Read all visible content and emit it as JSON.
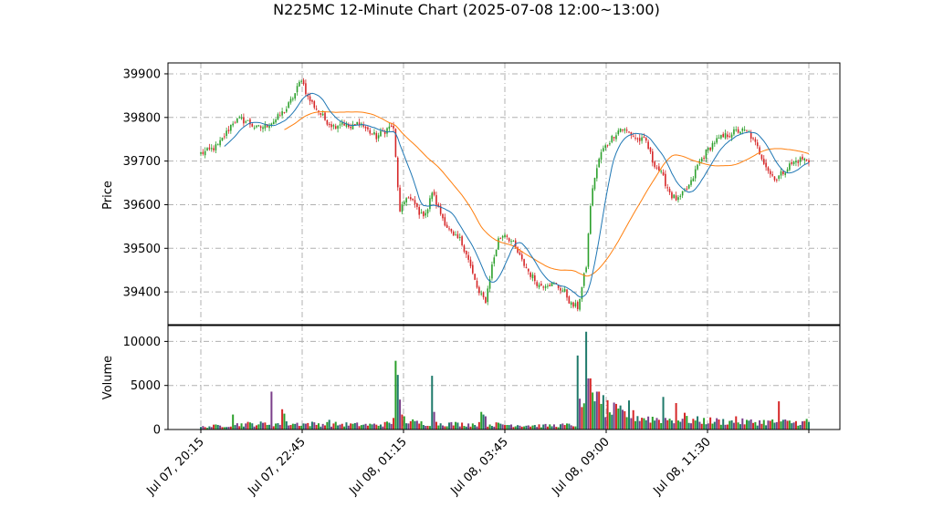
{
  "chart_data": {
    "type": "candlestick",
    "title": "N225MC 12-Minute Chart (2025-07-08 12:00~13:00)",
    "price_axis": {
      "label": "Price",
      "ylim": [
        39325,
        39925
      ],
      "ticks": [
        39400,
        39500,
        39600,
        39700,
        39800,
        39900
      ]
    },
    "volume_axis": {
      "label": "Volume",
      "ylim": [
        0,
        11800
      ],
      "ticks": [
        0,
        5000,
        10000
      ]
    },
    "x_tick_labels": [
      "Jul 07, 20:15",
      "Jul 07, 22:45",
      "Jul 08, 01:15",
      "Jul 08, 03:45",
      "Jul 08, 09:00",
      "Jul 08, 11:30"
    ],
    "grid": true,
    "colors": {
      "up": "#2ca02c",
      "down": "#d62728",
      "ma_short": "#1f77b4",
      "ma_long": "#ff7f0e",
      "volume_palette": [
        "#1f7a6b",
        "#7b3f8a",
        "#d62728",
        "#2ca02c"
      ]
    },
    "close_anchors": [
      [
        0,
        39718
      ],
      [
        3,
        39722
      ],
      [
        8,
        39735
      ],
      [
        12,
        39765
      ],
      [
        15,
        39790
      ],
      [
        18,
        39795
      ],
      [
        22,
        39790
      ],
      [
        26,
        39775
      ],
      [
        30,
        39780
      ],
      [
        35,
        39795
      ],
      [
        40,
        39820
      ],
      [
        44,
        39855
      ],
      [
        47,
        39890
      ],
      [
        50,
        39845
      ],
      [
        54,
        39820
      ],
      [
        58,
        39795
      ],
      [
        62,
        39780
      ],
      [
        66,
        39790
      ],
      [
        70,
        39775
      ],
      [
        74,
        39790
      ],
      [
        78,
        39770
      ],
      [
        82,
        39755
      ],
      [
        86,
        39770
      ],
      [
        89,
        39780
      ],
      [
        90,
        39770
      ],
      [
        93,
        39580
      ],
      [
        96,
        39620
      ],
      [
        100,
        39600
      ],
      [
        103,
        39575
      ],
      [
        106,
        39590
      ],
      [
        108,
        39630
      ],
      [
        111,
        39590
      ],
      [
        115,
        39550
      ],
      [
        118,
        39525
      ],
      [
        121,
        39520
      ],
      [
        124,
        39490
      ],
      [
        127,
        39440
      ],
      [
        130,
        39395
      ],
      [
        133,
        39380
      ],
      [
        136,
        39460
      ],
      [
        139,
        39520
      ],
      [
        142,
        39535
      ],
      [
        146,
        39510
      ],
      [
        150,
        39470
      ],
      [
        154,
        39440
      ],
      [
        158,
        39415
      ],
      [
        162,
        39420
      ],
      [
        166,
        39415
      ],
      [
        170,
        39400
      ],
      [
        173,
        39370
      ],
      [
        176,
        39365
      ],
      [
        178,
        39410
      ],
      [
        180,
        39460
      ],
      [
        182,
        39600
      ],
      [
        184,
        39665
      ],
      [
        187,
        39720
      ],
      [
        190,
        39740
      ],
      [
        193,
        39760
      ],
      [
        196,
        39775
      ],
      [
        200,
        39765
      ],
      [
        204,
        39750
      ],
      [
        208,
        39745
      ],
      [
        211,
        39700
      ],
      [
        214,
        39680
      ],
      [
        217,
        39650
      ],
      [
        220,
        39620
      ],
      [
        223,
        39610
      ],
      [
        226,
        39630
      ],
      [
        229,
        39650
      ],
      [
        232,
        39690
      ],
      [
        236,
        39720
      ],
      [
        240,
        39745
      ],
      [
        244,
        39755
      ],
      [
        248,
        39765
      ],
      [
        252,
        39770
      ],
      [
        256,
        39765
      ],
      [
        260,
        39730
      ],
      [
        263,
        39700
      ],
      [
        266,
        39670
      ],
      [
        269,
        39660
      ],
      [
        272,
        39675
      ],
      [
        275,
        39690
      ],
      [
        278,
        39700
      ],
      [
        281,
        39705
      ],
      [
        284,
        39700
      ]
    ],
    "volume_anchors": [
      [
        0,
        300
      ],
      [
        20,
        650
      ],
      [
        40,
        700
      ],
      [
        60,
        650
      ],
      [
        80,
        550
      ],
      [
        88,
        700
      ],
      [
        92,
        1400
      ],
      [
        100,
        800
      ],
      [
        120,
        650
      ],
      [
        140,
        600
      ],
      [
        160,
        450
      ],
      [
        175,
        550
      ],
      [
        180,
        2800
      ],
      [
        190,
        2400
      ],
      [
        200,
        1700
      ],
      [
        210,
        1300
      ],
      [
        230,
        1100
      ],
      [
        250,
        900
      ],
      [
        270,
        900
      ],
      [
        284,
        800
      ]
    ],
    "volume_spikes": [
      [
        15,
        1700
      ],
      [
        33,
        4300
      ],
      [
        38,
        2300
      ],
      [
        39,
        1800
      ],
      [
        60,
        1100
      ],
      [
        91,
        7800
      ],
      [
        92,
        6200
      ],
      [
        93,
        3400
      ],
      [
        94,
        1700
      ],
      [
        95,
        1500
      ],
      [
        108,
        6100
      ],
      [
        109,
        2000
      ],
      [
        131,
        2000
      ],
      [
        132,
        1700
      ],
      [
        133,
        1500
      ],
      [
        176,
        8400
      ],
      [
        177,
        3500
      ],
      [
        180,
        11100
      ],
      [
        181,
        5800
      ],
      [
        182,
        5800
      ],
      [
        183,
        4200
      ],
      [
        184,
        3200
      ],
      [
        185,
        4300
      ],
      [
        186,
        4300
      ],
      [
        188,
        3900
      ],
      [
        200,
        3300
      ],
      [
        216,
        3700
      ],
      [
        222,
        3000
      ],
      [
        226,
        1900
      ],
      [
        250,
        1500
      ],
      [
        270,
        3200
      ],
      [
        283,
        1200
      ]
    ],
    "ma_short_window": 12,
    "ma_long_window": 40,
    "num_bars": 285
  }
}
